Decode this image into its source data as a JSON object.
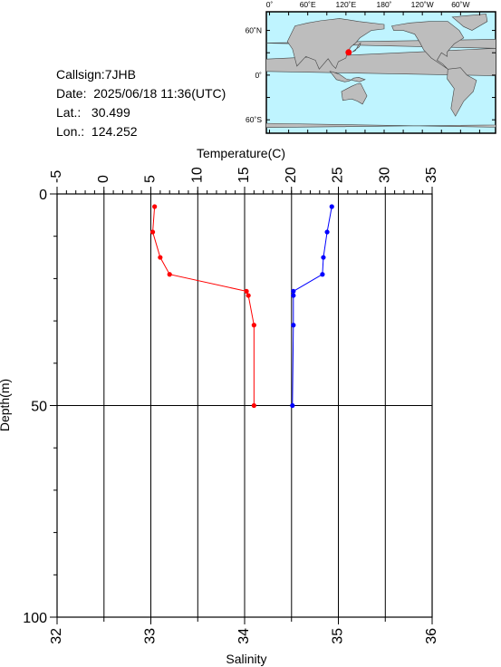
{
  "info": {
    "callsign": "Callsign:7JHB",
    "date": "Date:  2025/06/18 11:36(UTC)",
    "lat": "Lat.:   30.499",
    "lon": "Lon.:  124.252"
  },
  "map": {
    "top_labels": [
      "0˚",
      "60˚E",
      "120˚E",
      "180˚",
      "120˚W",
      "60˚W"
    ],
    "left_labels": [
      "60˚N",
      "0˚",
      "60˚S"
    ],
    "ocean_color": "#bff4ff",
    "land_color": "#bdbdbd",
    "marker": {
      "lon": 124.252,
      "lat": 30.499,
      "color": "#ff0000"
    }
  },
  "chart_data": {
    "type": "line",
    "top_axis_label": "Temperature(C)",
    "bottom_axis_label": "Salinity",
    "ylabel": "Depth(m)",
    "temperature_ticks": [
      "-5",
      "0",
      "5",
      "10",
      "15",
      "20",
      "25",
      "30",
      "35"
    ],
    "salinity_ticks": [
      "32",
      "33",
      "34",
      "35",
      "36"
    ],
    "depth_ticks": [
      "0",
      "50",
      "100"
    ],
    "temperature_range": [
      -5,
      35
    ],
    "salinity_range": [
      32,
      36
    ],
    "depth_range": [
      0,
      100
    ],
    "grid": true,
    "series": [
      {
        "color": "#ff0000",
        "depth": [
          3,
          9,
          15,
          19,
          23,
          24,
          31,
          50
        ],
        "salinity": [
          33.04,
          33.02,
          33.1,
          33.2,
          34.02,
          34.04,
          34.1,
          34.1
        ]
      },
      {
        "color": "#0000ff",
        "depth": [
          3,
          9,
          15,
          19,
          23,
          24,
          31,
          50
        ],
        "temperature": [
          24.3,
          23.8,
          23.4,
          23.3,
          20.2,
          20.2,
          20.2,
          20.1
        ]
      }
    ]
  }
}
